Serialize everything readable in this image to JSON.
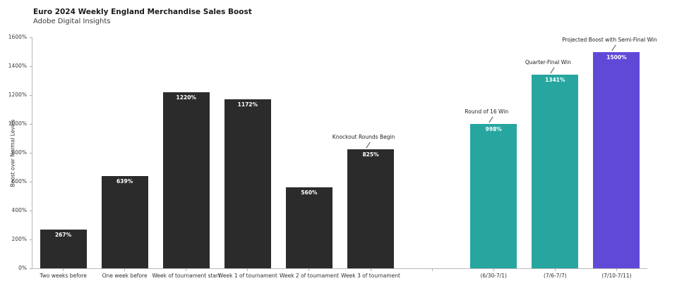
{
  "header": {
    "title": "Euro 2024 Weekly England Merchandise Sales Boost",
    "subtitle": "Adobe Digital Insights"
  },
  "chart_data": {
    "type": "bar",
    "title": "Euro 2024 Weekly England Merchandise Sales Boost",
    "subtitle": "Adobe Digital Insights",
    "xlabel": "",
    "ylabel": "Boost over Normal Levels",
    "ylim": [
      0,
      1600
    ],
    "ytick_step": 200,
    "yticks": [
      "0%",
      "200%",
      "400%",
      "600%",
      "800%",
      "1000%",
      "1200%",
      "1400%",
      "1600%"
    ],
    "grid": false,
    "legend": "none",
    "categories": [
      "Two weeks before",
      "One week before",
      "Week of tournament start",
      "Week 1 of tournament",
      "Week 2 of tournament",
      "Week 3 of tournament",
      "",
      "(6/30-7/1)",
      "(7/6-7/7)",
      "(7/10-7/11)"
    ],
    "values": [
      267,
      639,
      1220,
      1172,
      560,
      825,
      null,
      998,
      1341,
      1500
    ],
    "bar_labels": [
      "267%",
      "639%",
      "1220%",
      "1172%",
      "560%",
      "825%",
      "",
      "998%",
      "1341%",
      "1500%"
    ],
    "bar_colors": [
      "#2b2b2b",
      "#2b2b2b",
      "#2b2b2b",
      "#2b2b2b",
      "#2b2b2b",
      "#2b2b2b",
      null,
      "#27a6a0",
      "#27a6a0",
      "#6149d8"
    ],
    "annotations": [
      {
        "label": "Knockout Rounds Begin",
        "category_index": 5
      },
      {
        "label": "Round of 16 Win",
        "category_index": 7
      },
      {
        "label": "Quarter-Final Win",
        "category_index": 8
      },
      {
        "label": "Projected Boost with Semi-Final Win",
        "category_index": 9
      }
    ]
  },
  "colors": {
    "bar_dark": "#2b2b2b",
    "bar_teal": "#27a6a0",
    "bar_purple": "#6149d8",
    "axis": "#b9b9b9",
    "tick_text": "#3b3b3b",
    "annotation_text": "#222222",
    "value_text": "#ffffff",
    "background": "#ffffff"
  }
}
